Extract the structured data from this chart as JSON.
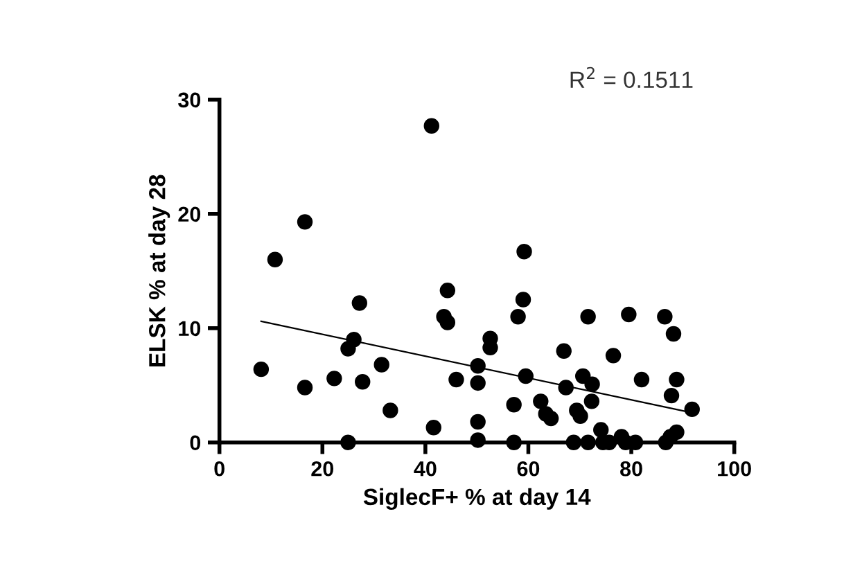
{
  "chart_data": {
    "type": "scatter",
    "xlabel": "SiglecF+ % at day 14",
    "ylabel": "ELSK % at day 28",
    "annotations": [
      "R$^{2}$ = 0.1511"
    ],
    "xlim": [
      0,
      100
    ],
    "xticks": [
      0,
      20,
      40,
      60,
      80,
      100
    ],
    "ylim": [
      0,
      30
    ],
    "yticks": [
      0,
      10,
      20,
      30
    ],
    "grid": false,
    "legend": false,
    "series": [
      {
        "color": "#000000",
        "marker": "circle",
        "x": [
          8.1,
          10.8,
          16.6,
          16.6,
          22.3,
          25.0,
          26.1,
          27.2,
          27.8,
          25.0,
          31.5,
          33.2,
          41.2,
          41.6,
          44.3,
          43.6,
          44.3,
          46.0,
          50.2,
          50.2,
          50.2,
          50.2,
          52.6,
          52.6,
          57.2,
          57.2,
          58.0,
          59.2,
          59.0,
          59.5,
          62.4,
          63.4,
          64.4,
          66.9,
          67.3,
          68.8,
          69.4,
          70.1,
          70.6,
          71.6,
          71.6,
          72.4,
          72.3,
          74.1,
          74.5,
          75.7,
          76.5,
          78.1,
          78.9,
          79.5,
          80.8,
          82.0,
          86.5,
          86.7,
          87.6,
          88.2,
          88.8,
          87.8,
          88.8,
          91.8
        ],
        "values": [
          6.4,
          16.0,
          19.3,
          4.8,
          5.6,
          8.2,
          9.0,
          12.2,
          5.3,
          0,
          6.8,
          2.8,
          27.7,
          1.3,
          13.3,
          11.0,
          10.5,
          5.5,
          6.7,
          5.2,
          1.8,
          0.2,
          9.1,
          8.3,
          3.3,
          0,
          11.0,
          16.7,
          12.5,
          5.8,
          3.6,
          2.5,
          2.1,
          8.0,
          4.8,
          0,
          2.8,
          2.3,
          5.8,
          11.0,
          0,
          5.1,
          3.6,
          1.1,
          0,
          0,
          7.6,
          0.5,
          0,
          11.2,
          0,
          5.5,
          11.0,
          0,
          0.5,
          9.5,
          0.9,
          4.1,
          5.5,
          2.9
        ]
      },
      {
        "type": "line",
        "color": "#000000",
        "x": [
          8.1,
          90.7
        ],
        "values": [
          10.6,
          2.7
        ],
        "line_style": "solid"
      }
    ]
  }
}
